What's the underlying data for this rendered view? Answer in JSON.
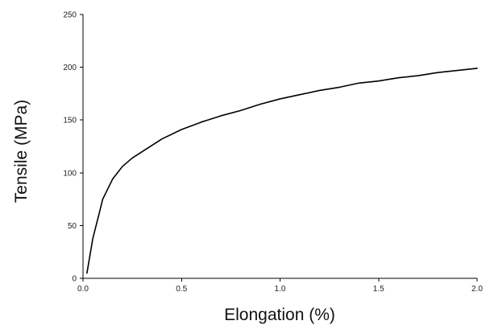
{
  "chart_data": {
    "type": "line",
    "xlabel": "Elongation (%)",
    "ylabel": "Tensile (MPa)",
    "xlim": [
      0,
      2
    ],
    "ylim": [
      0,
      250
    ],
    "x_ticks": [
      0,
      0.5,
      1.0,
      1.5,
      2.0
    ],
    "x_tick_labels": [
      "0.0",
      "0.5",
      "1.0",
      "1.5",
      "2.0"
    ],
    "y_ticks": [
      0,
      50,
      100,
      150,
      200,
      250
    ],
    "y_tick_labels": [
      "0",
      "50",
      "100",
      "150",
      "200",
      "250"
    ],
    "grid": false,
    "legend": "none",
    "series": [
      {
        "x": [
          0.02,
          0.05,
          0.08,
          0.1,
          0.15,
          0.2,
          0.25,
          0.3,
          0.4,
          0.5,
          0.6,
          0.7,
          0.8,
          0.9,
          1.0,
          1.1,
          1.2,
          1.3,
          1.4,
          1.5,
          1.6,
          1.7,
          1.8,
          1.9,
          2.0
        ],
        "y": [
          5,
          38,
          60,
          75,
          94,
          106,
          114,
          120,
          132,
          141,
          148,
          154,
          159,
          165,
          170,
          174,
          178,
          181,
          185,
          187,
          190,
          192,
          195,
          197,
          199
        ]
      }
    ]
  }
}
